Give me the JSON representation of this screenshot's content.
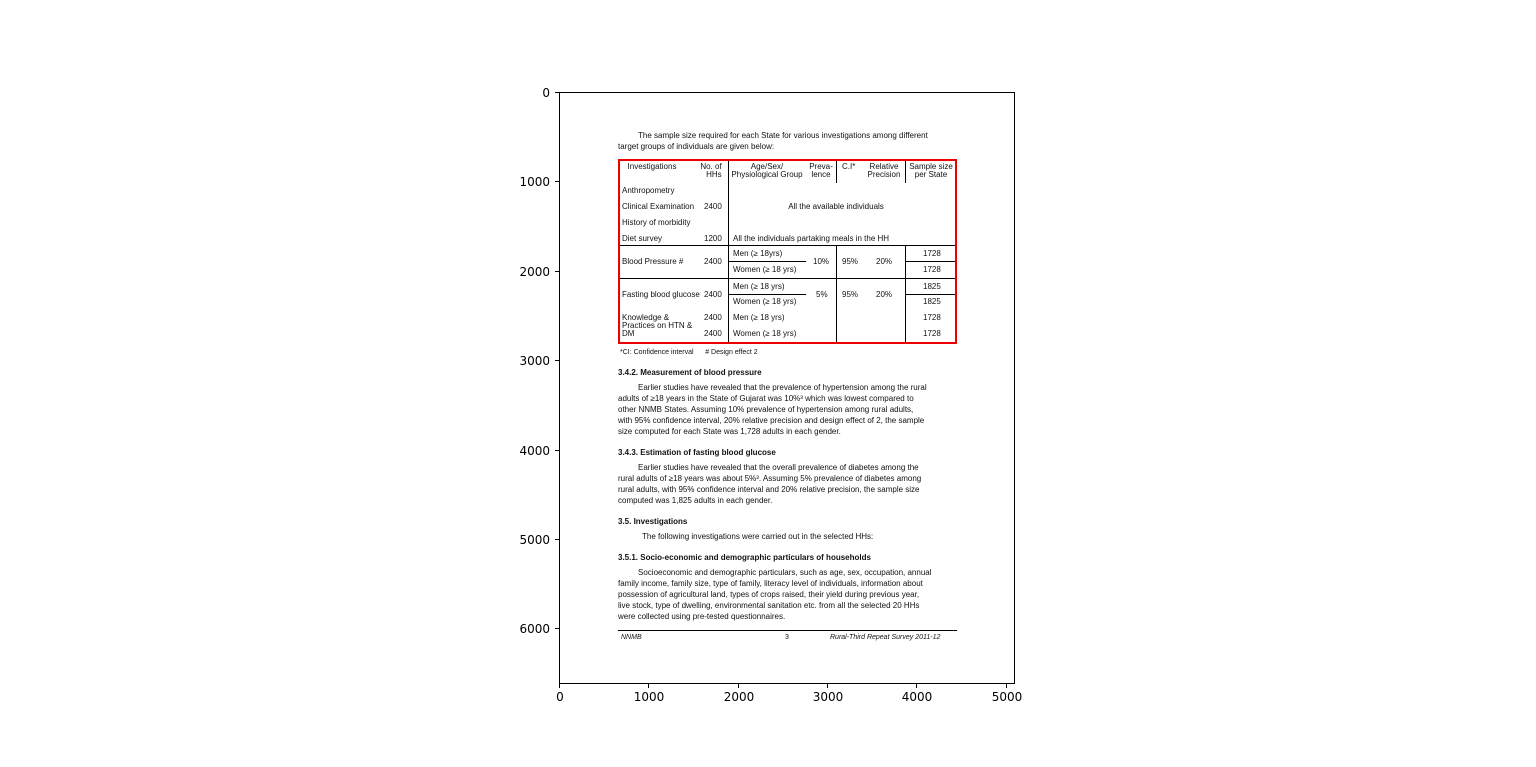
{
  "axes": {
    "x_ticks": [
      "0",
      "1000",
      "2000",
      "3000",
      "4000",
      "5000"
    ],
    "y_ticks": [
      "0",
      "1000",
      "2000",
      "3000",
      "4000",
      "5000",
      "6000"
    ],
    "highlight_color": "#ee0000"
  },
  "document": {
    "intro": [
      "The sample size required for each State for various investigations among different",
      "target groups of individuals are given below:"
    ],
    "table": {
      "headers": {
        "investigations": "Investigations",
        "hhs": "No. of\nHHs",
        "group": "Age/Sex/\nPhysiological Group",
        "prevalence": "Preva-\nlence",
        "ci": "C.I*",
        "precision": "Relative\nPrecision",
        "sample": "Sample size\nper State"
      },
      "rows": {
        "anthro": "Anthropometry",
        "clinical": "Clinical Examination",
        "clinical_hhs": "2400",
        "all_available": "All the available individuals",
        "history": "History of morbidity",
        "diet": "Diet survey",
        "diet_hhs": "1200",
        "diet_group": "All the individuals partaking meals in the HH",
        "bp": "Blood Pressure #",
        "bp_hhs": "2400",
        "bp_men": "Men (≥ 18yrs)",
        "bp_women": "Women (≥ 18 yrs)",
        "bp_prev": "10%",
        "bp_ci": "95%",
        "bp_prec": "20%",
        "bp_men_n": "1728",
        "bp_women_n": "1728",
        "fbg": "Fasting blood glucose",
        "fbg_hhs": "2400",
        "fbg_men": "Men (≥ 18 yrs)",
        "fbg_women": "Women (≥ 18 yrs)",
        "fbg_prev": "5%",
        "fbg_ci": "95%",
        "fbg_prec": "20%",
        "fbg_men_n": "1825",
        "fbg_women_n": "1825",
        "kp1": "Knowledge &",
        "kp2": "Practices on HTN &",
        "kp3": "DM",
        "kp_hhs1": "2400",
        "kp_hhs2": "2400",
        "kp_men": "Men (≥ 18 yrs)",
        "kp_women": "Women (≥ 18 yrs)",
        "kp_men_n": "1728",
        "kp_women_n": "1728"
      }
    },
    "footnote": "*CI: Confidence interval      # Design effect 2",
    "s342": {
      "title": "3.4.2. Measurement of blood pressure",
      "lines": [
        "Earlier studies have revealed that the prevalence of hypertension among the rural",
        "adults of ≥18 years in the State of Gujarat was 10%³ which was lowest compared to",
        "other NNMB States. Assuming 10% prevalence of hypertension among rural adults,",
        "with 95% confidence interval, 20% relative precision and design effect of 2, the sample",
        "size computed for each State was 1,728 adults in each gender."
      ]
    },
    "s343": {
      "title": "3.4.3. Estimation of fasting blood glucose",
      "lines": [
        "Earlier studies have revealed that the overall prevalence of diabetes among the",
        "rural adults of ≥18 years was about 5%³. Assuming 5% prevalence of diabetes among",
        "rural adults, with 95% confidence interval and 20% relative precision, the sample size",
        "computed was 1,825 adults in each gender."
      ]
    },
    "s35": {
      "title": "3.5. Investigations",
      "lines": [
        "The following investigations were carried out in the selected HHs:"
      ]
    },
    "s351": {
      "title": "3.5.1. Socio-economic and demographic particulars of households",
      "lines": [
        "Socioeconomic and demographic particulars, such as age, sex, occupation, annual",
        "family income, family size, type of family, literacy level of individuals, information about",
        "possession of agricultural land, types of crops raised, their yield during previous year,",
        "live stock, type of dwelling, environmental sanitation etc. from all the selected 20 HHs",
        "were collected using pre-tested questionnaires."
      ]
    },
    "footer": {
      "left": "NNMB",
      "center": "3",
      "right": "Rural-Third Repeat Survey 2011-12"
    }
  }
}
